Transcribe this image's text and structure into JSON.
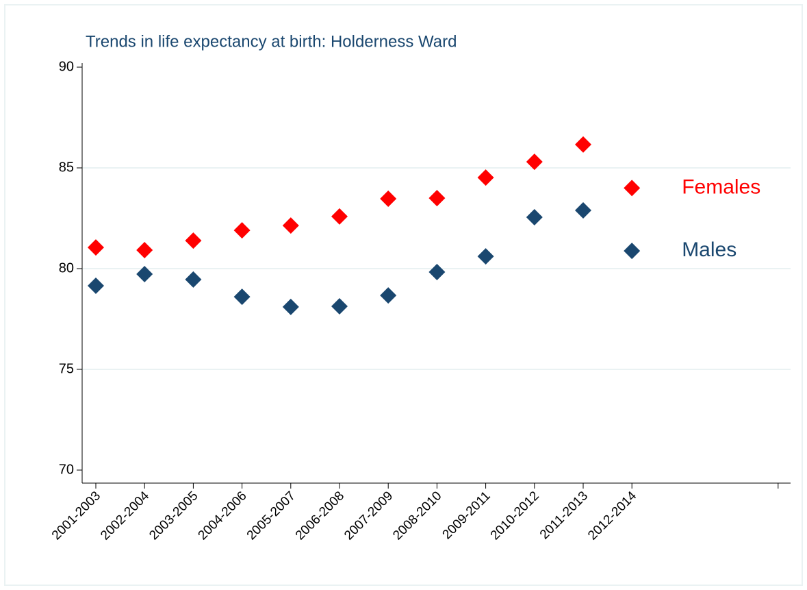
{
  "chart_data": {
    "type": "scatter",
    "title": "Trends in life expectancy at birth: Holderness Ward",
    "categories": [
      "2001-2003",
      "2002-2004",
      "2003-2005",
      "2004-2006",
      "2005-2007",
      "2006-2008",
      "2007-2009",
      "2008-2010",
      "2009-2011",
      "2010-2012",
      "2011-2013",
      "2012-2014",
      null,
      null,
      null
    ],
    "series": [
      {
        "name": "Females",
        "color": "#ff0000",
        "values": [
          81.05,
          80.92,
          81.39,
          81.9,
          82.14,
          82.59,
          83.47,
          83.5,
          84.52,
          85.3,
          86.16,
          84.0,
          null,
          null,
          null
        ]
      },
      {
        "name": "Males",
        "color": "#1a476f",
        "values": [
          79.15,
          79.73,
          79.46,
          78.6,
          78.1,
          78.13,
          78.67,
          79.83,
          80.61,
          82.55,
          82.89,
          80.88,
          null,
          null,
          null
        ]
      }
    ],
    "ylim": [
      70,
      90
    ],
    "yticks": [
      70,
      75,
      80,
      85,
      90
    ],
    "grid": true
  }
}
